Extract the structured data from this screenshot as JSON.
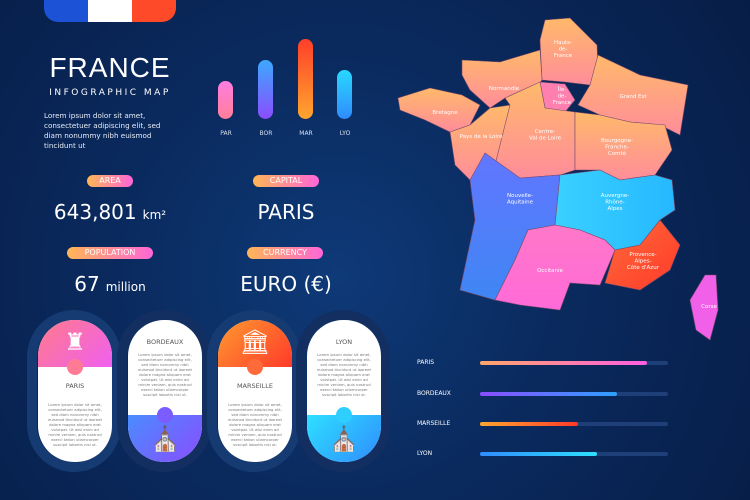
{
  "header": {
    "title": "FRANCE",
    "subtitle": "INFOGRAPHIC MAP",
    "lorem": "Lorem ipsum dolor sit amet, consectetuer adipiscing elit, sed diam nonummy nibh euismod tincidunt ut"
  },
  "flag_colors": [
    "#1b52d6",
    "#ffffff",
    "#ff4a2a"
  ],
  "mini_chart": {
    "bars": [
      {
        "label": "PAR",
        "value": 0.45
      },
      {
        "label": "BOR",
        "value": 0.7
      },
      {
        "label": "MAR",
        "value": 0.95
      },
      {
        "label": "LYO",
        "value": 0.58
      }
    ]
  },
  "facts": {
    "area": {
      "label": "AREA",
      "value": "643,801",
      "unit": "km²"
    },
    "capital": {
      "label": "CAPITAL",
      "value": "PARIS"
    },
    "population": {
      "label": "POPULATION",
      "value": "67",
      "unit": "million"
    },
    "currency": {
      "label": "CURRENCY",
      "value": "EURO (€)"
    }
  },
  "cities": [
    {
      "name": "PARIS",
      "icon": "eiffel-tower-icon",
      "text": "Lorem ipsum dolor sit amet, consectetuer adipiscing elit, sed diam nonummy nibh euismod tincidunt ut laoreet dolore magna aliquam erat volutpat. Ut wisi enim ad minim veniam, quis nostrud exerci tation ullamcorper suscipit lobortis nisl ut."
    },
    {
      "name": "BORDEAUX",
      "icon": "church-icon",
      "text": "Lorem ipsum dolor sit amet, consectetuer adipiscing elit, sed diam nonummy nibh euismod tincidunt ut laoreet dolore magna aliquam erat volutpat. Ut wisi enim ad minim veniam, quis nostrud exerci tation ullamcorper suscipit lobortis nisl ut."
    },
    {
      "name": "MARSEILLE",
      "icon": "palace-icon",
      "text": "Lorem ipsum dolor sit amet, consectetuer adipiscing elit, sed diam nonummy nibh euismod tincidunt ut laoreet dolore magna aliquam erat volutpat. Ut wisi enim ad minim veniam, quis nostrud exerci tation ullamcorper suscipit lobortis nisl ut."
    },
    {
      "name": "LYON",
      "icon": "cathedral-icon",
      "text": "Lorem ipsum dolor sit amet, consectetuer adipiscing elit, sed diam nonummy nibh euismod tincidunt ut laoreet dolore magna aliquam erat volutpat. Ut wisi enim ad minim veniam, quis nostrud exerci tation ullamcorper suscipit lobortis nisl ut."
    }
  ],
  "progress": [
    {
      "label": "PARIS",
      "value": 0.89
    },
    {
      "label": "BORDEAUX",
      "value": 0.73
    },
    {
      "label": "MARSEILLE",
      "value": 0.52
    },
    {
      "label": "LYON",
      "value": 0.62
    }
  ],
  "map": {
    "regions": [
      "Hauts-de-France",
      "Normandie",
      "Bretagne",
      "Île-de-France",
      "Grand Est",
      "Pays de la Loire",
      "Centre-Val de Loire",
      "Bourgogne-Franche-Comté",
      "Nouvelle-Aquitaine",
      "Auvergne-Rhône-Alpes",
      "Occitanie",
      "Provence-Alpes-Côte d'Azur",
      "Corse"
    ]
  }
}
